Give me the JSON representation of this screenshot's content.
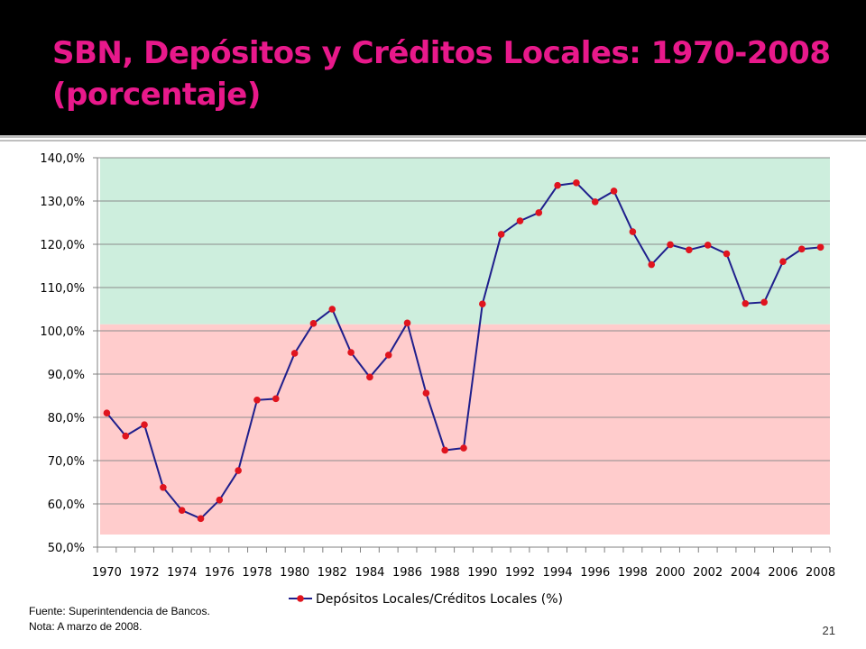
{
  "slide": {
    "title": "SBN, Depósitos y Créditos Locales: 1970-2008 (porcentaje)",
    "footnote_source": "Fuente: Superintendencia de Bancos.",
    "footnote_note": "Nota: A marzo de 2008.",
    "page_number": "21",
    "colors": {
      "title": "#e8198b",
      "header_background": "#000000",
      "band_above_100": "#cdeedd",
      "band_below_100": "#ffcccc",
      "line": "#1f1f8c",
      "marker": "#e0141e"
    }
  },
  "chart_data": {
    "type": "line",
    "title": "",
    "xlabel": "",
    "ylabel": "",
    "x": [
      1970,
      1971,
      1972,
      1973,
      1974,
      1975,
      1976,
      1977,
      1978,
      1979,
      1980,
      1981,
      1982,
      1983,
      1984,
      1985,
      1986,
      1987,
      1988,
      1989,
      1990,
      1991,
      1992,
      1993,
      1994,
      1995,
      1996,
      1997,
      1998,
      1999,
      2000,
      2001,
      2002,
      2003,
      2004,
      2005,
      2006,
      2007,
      2008
    ],
    "x_tick_labels": [
      "1970",
      "1972",
      "1974",
      "1976",
      "1978",
      "1980",
      "1982",
      "1984",
      "1986",
      "1988",
      "1990",
      "1992",
      "1994",
      "1996",
      "1998",
      "2000",
      "2002",
      "2004",
      "2006",
      "2008"
    ],
    "y_tick_labels": [
      "50,0%",
      "60,0%",
      "70,0%",
      "80,0%",
      "90,0%",
      "100,0%",
      "110,0%",
      "120,0%",
      "130,0%",
      "140,0%"
    ],
    "ylim": [
      50,
      140
    ],
    "band_split_value": 101.5,
    "grid": true,
    "legend_position": "bottom",
    "series": [
      {
        "name": "Depósitos Locales/Créditos Locales (%)",
        "values": [
          81.0,
          75.7,
          78.3,
          63.8,
          58.5,
          56.6,
          60.9,
          67.7,
          84.0,
          84.3,
          94.8,
          101.7,
          105.0,
          95.0,
          89.3,
          94.4,
          101.8,
          85.6,
          72.4,
          72.9,
          106.2,
          122.3,
          125.4,
          127.3,
          133.6,
          134.2,
          129.8,
          132.3,
          122.9,
          115.3,
          119.9,
          118.7,
          119.8,
          117.8,
          106.3,
          106.6,
          116.0,
          118.9,
          119.3
        ]
      }
    ]
  }
}
